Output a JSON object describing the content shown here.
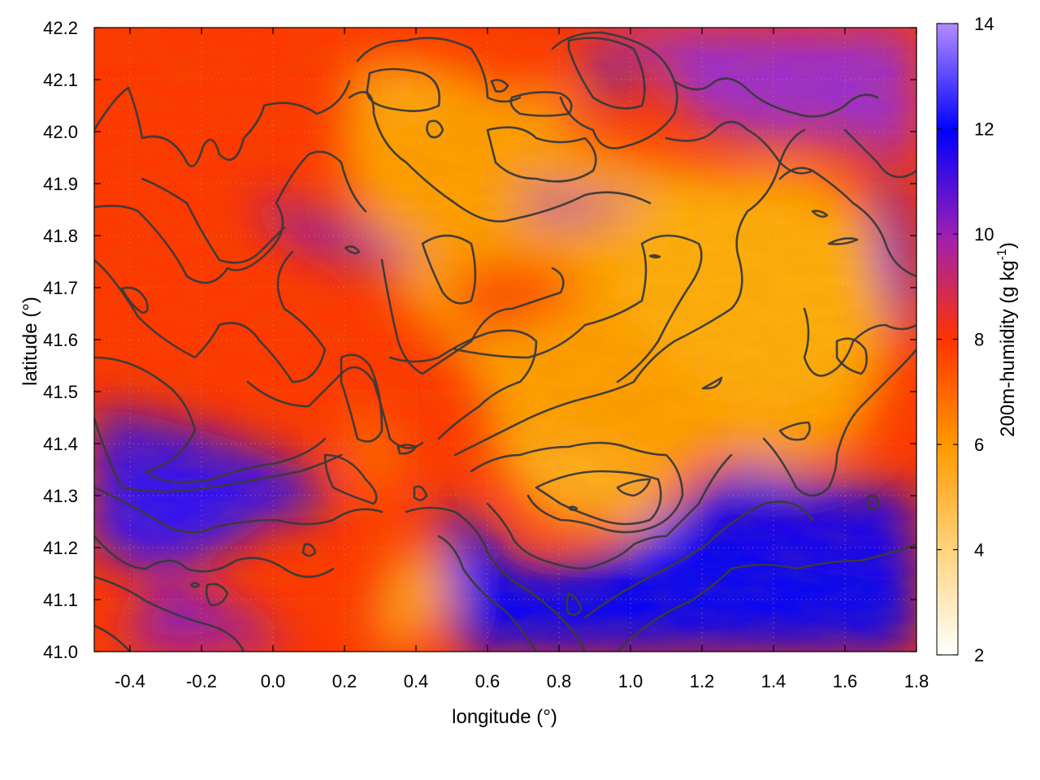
{
  "chart_data": {
    "type": "heatmap",
    "title": "",
    "xlabel": "longitude (°)",
    "ylabel": "latitude (°)",
    "xlim": [
      -0.5,
      1.8
    ],
    "ylim": [
      41.0,
      42.2
    ],
    "x_ticks": [
      "-0.4",
      "-0.2",
      "0.0",
      "0.2",
      "0.4",
      "0.6",
      "0.8",
      "1.0",
      "1.2",
      "1.4",
      "1.6",
      "1.8"
    ],
    "y_ticks": [
      "41.0",
      "41.1",
      "41.2",
      "41.3",
      "41.4",
      "41.5",
      "41.6",
      "41.7",
      "41.8",
      "41.9",
      "42.0",
      "42.1",
      "42.2"
    ],
    "grid": true,
    "colorbar": {
      "label": "200m-humidity (g kg",
      "label_superscript": "-1",
      "label_suffix": ")",
      "range": [
        2,
        14
      ],
      "ticks": [
        "2",
        "4",
        "6",
        "8",
        "10",
        "12",
        "14"
      ],
      "colors": [
        "#ffffff",
        "#ffb236",
        "#ff7f00",
        "#ff2a00",
        "#9a2ad4",
        "#0000ff",
        "#b07cff"
      ]
    },
    "field_description_values": [
      {
        "region": "northwest",
        "lon": [
          -0.5,
          0.4
        ],
        "lat": [
          41.6,
          42.2
        ],
        "humidity": 8.2
      },
      {
        "region": "southwest",
        "lon": [
          -0.5,
          0.3
        ],
        "lat": [
          41.2,
          41.4
        ],
        "humidity": 11.0
      },
      {
        "region": "central",
        "lon": [
          0.6,
          1.3
        ],
        "lat": [
          41.4,
          41.7
        ],
        "humidity": 6.0
      },
      {
        "region": "southeast",
        "lon": [
          1.0,
          1.8
        ],
        "lat": [
          41.0,
          41.3
        ],
        "humidity": 11.6
      },
      {
        "region": "northeast",
        "lon": [
          1.2,
          1.7
        ],
        "lat": [
          41.6,
          42.0
        ],
        "humidity": 5.5
      }
    ],
    "contour_levels": [
      6,
      8,
      10
    ]
  }
}
